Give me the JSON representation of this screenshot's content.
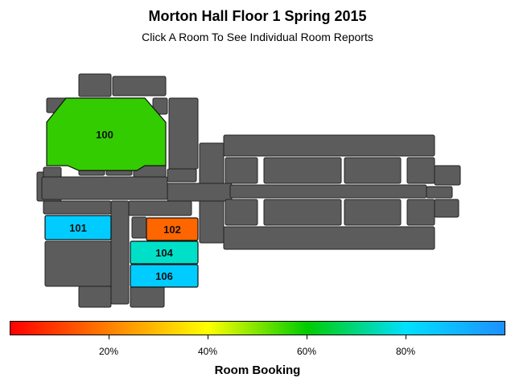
{
  "header": {
    "title": "Morton Hall Floor 1 Spring 2015",
    "subtitle": "Click A Room To See Individual Room Reports"
  },
  "colors": {
    "building": "#5c5c5c",
    "scale": [
      "#ff0000",
      "#ff8000",
      "#ffff00",
      "#00cc00",
      "#00e0ff",
      "#1e90ff"
    ]
  },
  "rooms": [
    {
      "id": "100",
      "label": "100",
      "booking_pct": 68,
      "color": "#33cc00"
    },
    {
      "id": "101",
      "label": "101",
      "booking_pct": 85,
      "color": "#00ccff"
    },
    {
      "id": "102",
      "label": "102",
      "booking_pct": 25,
      "color": "#ff6600"
    },
    {
      "id": "104",
      "label": "104",
      "booking_pct": 78,
      "color": "#00e0c8"
    },
    {
      "id": "106",
      "label": "106",
      "booking_pct": 86,
      "color": "#00ccff"
    }
  ],
  "legend": {
    "title": "Room Booking",
    "ticks": [
      "20%",
      "40%",
      "60%",
      "80%"
    ]
  }
}
